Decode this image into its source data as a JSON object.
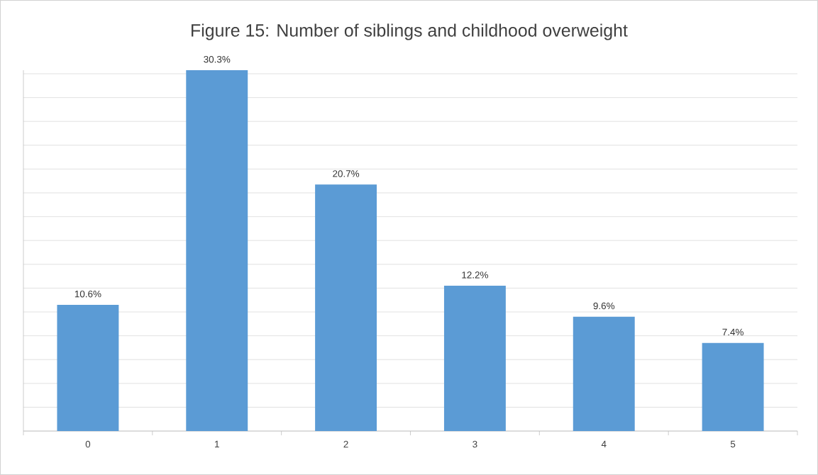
{
  "chart_data": {
    "type": "bar",
    "title": "Figure 15: Number of siblings and childhood overweight",
    "categories": [
      "0",
      "1",
      "2",
      "3",
      "4",
      "5"
    ],
    "values": [
      10.6,
      30.3,
      20.7,
      12.2,
      9.6,
      7.4
    ],
    "value_labels": [
      "10.6%",
      "30.3%",
      "20.7%",
      "12.2%",
      "9.6%",
      "7.4%"
    ],
    "color": "#5b9bd5",
    "tick_labels": "x",
    "grid": "y"
  }
}
